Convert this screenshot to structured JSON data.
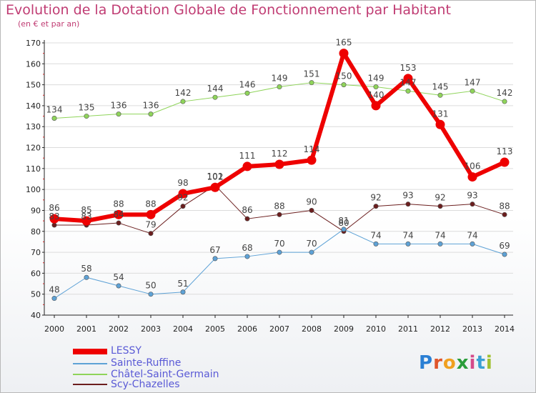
{
  "title": "Evolution de la Dotation Globale de Fonctionnement par Habitant",
  "subtitle": "(en € et par an)",
  "logo": "Proxiti",
  "colors": {
    "title": "#c03c73",
    "legend_text": "#5a5ad6",
    "axis": "#222222",
    "grid": "#dcdcdc"
  },
  "chart_data": {
    "type": "line",
    "title": "Evolution de la Dotation Globale de Fonctionnement par Habitant",
    "subtitle": "(en € et par an)",
    "xlabel": "",
    "ylabel": "",
    "ylim": [
      40,
      170
    ],
    "y_ticks": [
      40,
      50,
      60,
      70,
      80,
      90,
      100,
      110,
      120,
      130,
      140,
      150,
      160,
      170
    ],
    "categories": [
      "2000",
      "2001",
      "2002",
      "2003",
      "2004",
      "2005",
      "2006",
      "2007",
      "2008",
      "2009",
      "2010",
      "2011",
      "2012",
      "2013",
      "2014"
    ],
    "legend_position": "bottom-left",
    "series": [
      {
        "name": "Scy-Chazelles",
        "color": "#6b1e1e",
        "width": 1,
        "values": [
          83,
          83,
          84,
          79,
          92,
          102,
          86,
          88,
          90,
          80,
          92,
          93,
          92,
          93,
          88
        ]
      },
      {
        "name": "Châtel-Saint-Germain",
        "color": "#8fd45a",
        "width": 1,
        "values": [
          134,
          135,
          136,
          136,
          142,
          144,
          146,
          149,
          151,
          150,
          149,
          147,
          145,
          147,
          142
        ]
      },
      {
        "name": "Sainte-Ruffine",
        "color": "#5ea2d6",
        "width": 1,
        "values": [
          48,
          58,
          54,
          50,
          51,
          67,
          68,
          70,
          70,
          81,
          74,
          74,
          74,
          74,
          69
        ]
      },
      {
        "name": "LESSY",
        "color": "#ee0000",
        "width": 6,
        "values": [
          86,
          85,
          88,
          88,
          98,
          101,
          111,
          112,
          114,
          165,
          140,
          153,
          131,
          106,
          113
        ]
      }
    ],
    "legend": [
      "LESSY",
      "Sainte-Ruffine",
      "Châtel-Saint-Germain",
      "Scy-Chazelles"
    ]
  }
}
